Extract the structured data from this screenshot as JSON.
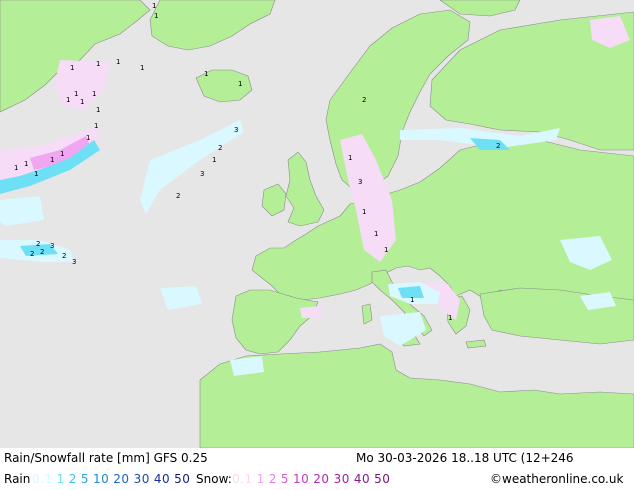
{
  "header": {
    "product": "Rain/Snowfall rate [mm] GFS 0.25",
    "valid_time": "Mo 30-03-2026 18..18 UTC (12+246"
  },
  "legend": {
    "rain_label": "Rain",
    "rain_steps": [
      {
        "label": "0.1",
        "color": "#d9f8ff"
      },
      {
        "label": "1",
        "color": "#6ee0f6"
      },
      {
        "label": "2",
        "color": "#3cc4f0"
      },
      {
        "label": "5",
        "color": "#22a8e8"
      },
      {
        "label": "10",
        "color": "#1c86d8"
      },
      {
        "label": "20",
        "color": "#1a66c4"
      },
      {
        "label": "30",
        "color": "#1848b0"
      },
      {
        "label": "40",
        "color": "#162f98"
      },
      {
        "label": "50",
        "color": "#141c80"
      }
    ],
    "snow_label": "Snow:",
    "snow_steps": [
      {
        "label": "0.1",
        "color": "#f6dcf6"
      },
      {
        "label": "1",
        "color": "#f0a6f0"
      },
      {
        "label": "2",
        "color": "#e680e6"
      },
      {
        "label": "5",
        "color": "#d85ad8"
      },
      {
        "label": "10",
        "color": "#c83ac8"
      },
      {
        "label": "20",
        "color": "#b42ab4"
      },
      {
        "label": "30",
        "color": "#a020a0"
      },
      {
        "label": "40",
        "color": "#8c188c"
      },
      {
        "label": "50",
        "color": "#781278"
      }
    ],
    "credit": "©weatheronline.co.uk"
  },
  "map": {
    "land_color": "#b4ee96",
    "sea_color": "#e6e6e6",
    "border_color": "#8c8c8c",
    "value_labels": [
      "1",
      "1",
      "1",
      "1",
      "1",
      "1",
      "1",
      "1",
      "1",
      "1",
      "1",
      "1",
      "1",
      "1",
      "1",
      "1",
      "1",
      "1",
      "1",
      "1",
      "2",
      "2",
      "2",
      "3",
      "2",
      "3",
      "2",
      "3",
      "1",
      "2",
      "3",
      "2",
      "1",
      "3",
      "1",
      "1",
      "1",
      "1",
      "1",
      "2"
    ]
  }
}
